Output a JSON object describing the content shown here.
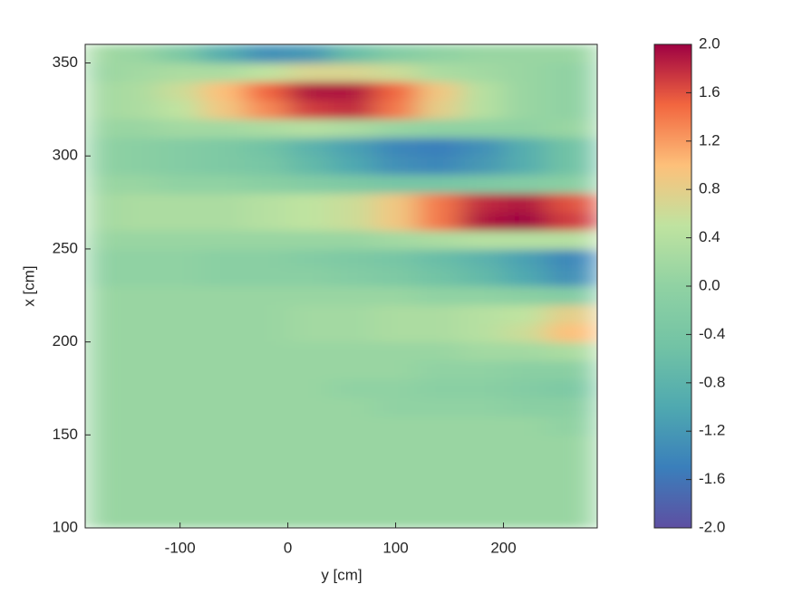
{
  "chart_data": {
    "type": "heatmap",
    "xlabel": "y [cm]",
    "ylabel": "x [cm]",
    "xlim": [
      -188,
      287
    ],
    "ylim": [
      100,
      360
    ],
    "xticks": [
      -100,
      0,
      100,
      200
    ],
    "yticks": [
      100,
      150,
      200,
      250,
      300,
      350
    ],
    "x": [
      -180,
      -140,
      -100,
      -60,
      -20,
      20,
      60,
      100,
      140,
      180,
      220,
      260
    ],
    "y": [
      105,
      115,
      125,
      135,
      145,
      155,
      165,
      175,
      185,
      195,
      205,
      215,
      225,
      235,
      245,
      255,
      265,
      275,
      285,
      295,
      305,
      315,
      325,
      335,
      345,
      355
    ],
    "z": [
      [
        0.1,
        0.1,
        0.1,
        0.1,
        0.1,
        0.1,
        0.1,
        0.1,
        0.1,
        0.1,
        0.1,
        0.1
      ],
      [
        0.1,
        0.1,
        0.1,
        0.1,
        0.1,
        0.1,
        0.1,
        0.1,
        0.1,
        0.1,
        0.1,
        0.1
      ],
      [
        0.1,
        0.1,
        0.1,
        0.1,
        0.1,
        0.1,
        0.1,
        0.1,
        0.1,
        0.1,
        0.1,
        0.1
      ],
      [
        0.1,
        0.1,
        0.1,
        0.1,
        0.1,
        0.1,
        0.1,
        0.1,
        0.1,
        0.1,
        0.1,
        0.1
      ],
      [
        0.1,
        0.1,
        0.1,
        0.1,
        0.1,
        0.1,
        0.1,
        0.1,
        0.1,
        0.1,
        0.1,
        0.1
      ],
      [
        0.1,
        0.1,
        0.1,
        0.1,
        0.1,
        0.1,
        0.1,
        0.1,
        0.1,
        0.1,
        0.1,
        0.0
      ],
      [
        0.1,
        0.1,
        0.1,
        0.1,
        0.1,
        0.1,
        0.1,
        0.0,
        0.0,
        0.0,
        -0.1,
        -0.1
      ],
      [
        0.1,
        0.1,
        0.1,
        0.1,
        0.1,
        0.1,
        0.0,
        0.0,
        -0.1,
        -0.1,
        -0.2,
        -0.3
      ],
      [
        0.1,
        0.1,
        0.1,
        0.1,
        0.1,
        0.1,
        0.1,
        0.1,
        0.0,
        0.0,
        -0.1,
        -0.1
      ],
      [
        0.1,
        0.1,
        0.1,
        0.1,
        0.1,
        0.1,
        0.1,
        0.1,
        0.1,
        0.2,
        0.2,
        0.3
      ],
      [
        0.1,
        0.1,
        0.1,
        0.1,
        0.1,
        0.2,
        0.2,
        0.3,
        0.3,
        0.4,
        0.6,
        1.0
      ],
      [
        0.1,
        0.1,
        0.1,
        0.1,
        0.1,
        0.2,
        0.2,
        0.3,
        0.3,
        0.4,
        0.5,
        0.8
      ],
      [
        0.1,
        0.1,
        0.1,
        0.1,
        0.1,
        0.1,
        0.1,
        0.1,
        0.0,
        0.0,
        -0.1,
        -0.2
      ],
      [
        0.0,
        0.0,
        0.0,
        -0.1,
        -0.1,
        -0.1,
        -0.2,
        -0.3,
        -0.5,
        -0.7,
        -1.0,
        -1.3
      ],
      [
        0.0,
        0.0,
        0.0,
        -0.1,
        -0.1,
        -0.2,
        -0.3,
        -0.4,
        -0.6,
        -0.8,
        -1.1,
        -1.4
      ],
      [
        0.1,
        0.1,
        0.1,
        0.1,
        0.1,
        0.1,
        0.1,
        0.2,
        0.3,
        0.4,
        0.4,
        0.4
      ],
      [
        0.2,
        0.3,
        0.3,
        0.3,
        0.4,
        0.5,
        0.6,
        0.9,
        1.4,
        1.9,
        2.0,
        1.7
      ],
      [
        0.2,
        0.3,
        0.3,
        0.3,
        0.4,
        0.5,
        0.6,
        0.9,
        1.4,
        1.8,
        1.9,
        1.6
      ],
      [
        0.1,
        0.1,
        0.0,
        0.0,
        -0.1,
        -0.2,
        -0.3,
        -0.4,
        -0.4,
        -0.3,
        -0.2,
        -0.1
      ],
      [
        0.0,
        -0.1,
        -0.2,
        -0.3,
        -0.4,
        -0.7,
        -1.0,
        -1.3,
        -1.4,
        -1.2,
        -0.9,
        -0.5
      ],
      [
        0.0,
        -0.1,
        -0.2,
        -0.3,
        -0.5,
        -0.8,
        -1.1,
        -1.4,
        -1.5,
        -1.3,
        -0.9,
        -0.5
      ],
      [
        0.1,
        0.1,
        0.2,
        0.2,
        0.3,
        0.4,
        0.3,
        0.1,
        0.0,
        0.0,
        0.0,
        0.1
      ],
      [
        0.2,
        0.3,
        0.5,
        0.9,
        1.3,
        1.7,
        1.8,
        1.4,
        0.8,
        0.4,
        0.1,
        0.0
      ],
      [
        0.2,
        0.3,
        0.6,
        1.0,
        1.5,
        1.9,
        1.9,
        1.5,
        0.9,
        0.4,
        0.1,
        0.0
      ],
      [
        0.1,
        0.2,
        0.3,
        0.3,
        0.5,
        0.7,
        0.7,
        0.6,
        0.3,
        0.2,
        0.1,
        0.0
      ],
      [
        0.2,
        0.1,
        -0.3,
        -0.9,
        -1.3,
        -1.2,
        -0.6,
        -0.2,
        0.0,
        0.1,
        0.1,
        0.1
      ]
    ],
    "clim": [
      -2,
      2
    ],
    "colormap": [
      "#5e4fa2",
      "#3a7fbb",
      "#4fa9b0",
      "#72c3a5",
      "#90d2a3",
      "#bfe3a0",
      "#fdc07a",
      "#f2663f",
      "#9e0142"
    ],
    "cticks": [
      {
        "value": -2,
        "label": "-2.0"
      },
      -1.6,
      -1.2,
      -0.8,
      -0.4,
      {
        "value": 0,
        "label": "0.0"
      },
      0.4,
      0.8,
      1.2,
      1.6,
      {
        "value": 2,
        "label": "2.0"
      }
    ]
  }
}
